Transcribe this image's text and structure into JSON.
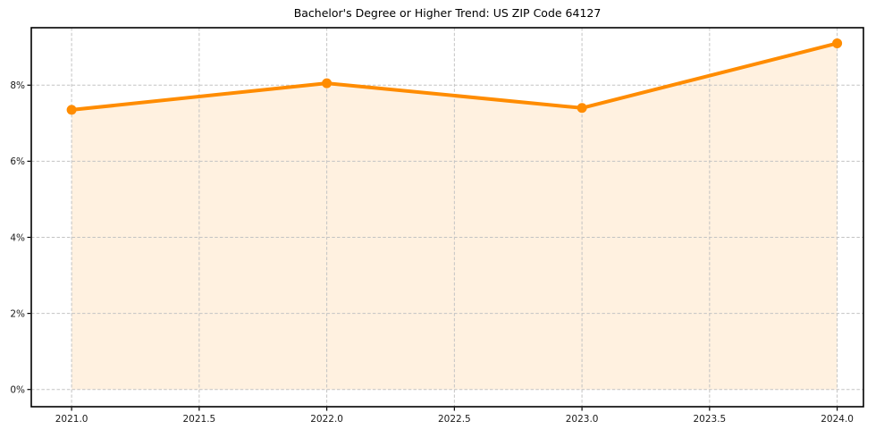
{
  "chart_data": {
    "type": "area",
    "title": "Bachelor's Degree or Higher Trend: US ZIP Code 64127",
    "xlabel": "",
    "ylabel": "",
    "x": [
      2021,
      2022,
      2023,
      2024
    ],
    "values": [
      7.35,
      8.05,
      7.4,
      9.1
    ],
    "value_unit": "percent",
    "baseline_value": 0,
    "x_tick_values": [
      2021.0,
      2021.5,
      2022.0,
      2022.5,
      2023.0,
      2023.5,
      2024.0
    ],
    "x_tick_labels": [
      "2021.0",
      "2021.5",
      "2022.0",
      "2022.5",
      "2023.0",
      "2023.5",
      "2024.0"
    ],
    "y_tick_values": [
      0,
      2,
      4,
      6,
      8
    ],
    "y_tick_labels": [
      "0%",
      "2%",
      "4%",
      "6%",
      "8%"
    ],
    "xlim": [
      2020.842,
      2024.103
    ],
    "ylim": [
      -0.453,
      9.51
    ],
    "grid": true,
    "grid_style": "dashed",
    "legend_position": "none",
    "colors": {
      "line": "#ff8c00",
      "marker": "#ff8c00",
      "fill": "rgba(255, 140, 0, 0.12)",
      "grid": "#c3c3c3",
      "axis": "#000000",
      "text": "#1a1a1a",
      "background": "#ffffff"
    }
  }
}
